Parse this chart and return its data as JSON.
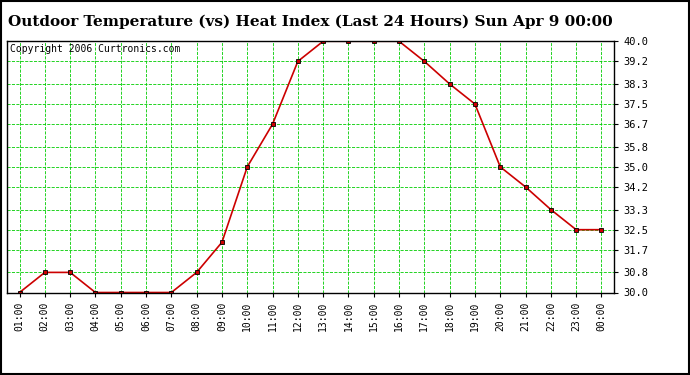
{
  "title": "Outdoor Temperature (vs) Heat Index (Last 24 Hours) Sun Apr 9 00:00",
  "copyright": "Copyright 2006 Curtronics.com",
  "x_labels": [
    "01:00",
    "02:00",
    "03:00",
    "04:00",
    "05:00",
    "06:00",
    "07:00",
    "08:00",
    "09:00",
    "10:00",
    "11:00",
    "12:00",
    "13:00",
    "14:00",
    "15:00",
    "16:00",
    "17:00",
    "18:00",
    "19:00",
    "20:00",
    "21:00",
    "22:00",
    "23:00",
    "00:00"
  ],
  "y_values": [
    30.0,
    30.8,
    30.8,
    30.0,
    30.0,
    30.0,
    30.0,
    30.8,
    32.0,
    35.0,
    36.7,
    39.2,
    40.0,
    40.0,
    40.0,
    40.0,
    39.2,
    38.3,
    37.5,
    35.0,
    34.2,
    33.3,
    32.5,
    32.5
  ],
  "line_color": "#cc0000",
  "marker_color": "#000000",
  "bg_color": "#ffffff",
  "plot_bg_color": "#ffffff",
  "grid_color": "#00cc00",
  "title_fontsize": 11,
  "ylim_min": 30.0,
  "ylim_max": 40.0,
  "yticks": [
    30.0,
    30.8,
    31.7,
    32.5,
    33.3,
    34.2,
    35.0,
    35.8,
    36.7,
    37.5,
    38.3,
    39.2,
    40.0
  ]
}
